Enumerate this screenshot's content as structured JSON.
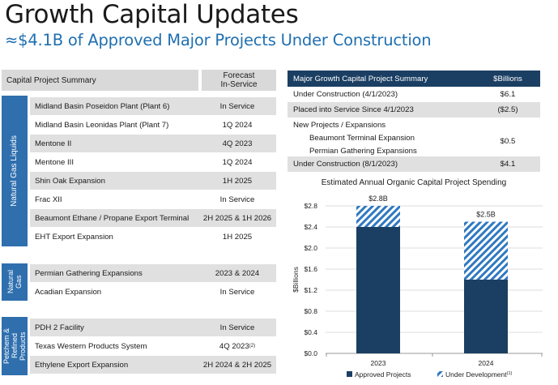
{
  "header": {
    "title": "Growth Capital Updates",
    "subtitle": "≈$4.1B of Approved Major Projects Under Construction"
  },
  "left_table": {
    "col1_header": "Capital Project Summary",
    "col2_header_line1": "Forecast",
    "col2_header_line2": "In-Service",
    "groups": [
      {
        "label": "Natural Gas Liquids",
        "rows": [
          {
            "name": "Midland Basin Poseidon Plant (Plant 6)",
            "date": "In Service"
          },
          {
            "name": "Midland Basin Leonidas Plant (Plant 7)",
            "date": "1Q 2024"
          },
          {
            "name": "Mentone II",
            "date": "4Q 2023"
          },
          {
            "name": "Mentone III",
            "date": "1Q 2024"
          },
          {
            "name": "Shin Oak Expansion",
            "date": "1H 2025"
          },
          {
            "name": "Frac XII",
            "date": "In Service"
          },
          {
            "name": "Beaumont Ethane / Propane Export Terminal",
            "date": "2H 2025 & 1H 2026"
          },
          {
            "name": "EHT Export Expansion",
            "date": "1H 2025"
          }
        ]
      },
      {
        "label_line1": "Natural",
        "label_line2": "Gas",
        "rows": [
          {
            "name": "Permian Gathering Expansions",
            "date": "2023 & 2024"
          },
          {
            "name": "Acadian Expansion",
            "date": "In Service"
          }
        ]
      },
      {
        "label_line1": "Petchem &",
        "label_line2": "Refined",
        "label_line3": "Products",
        "rows": [
          {
            "name": "PDH 2 Facility",
            "date": "In Service"
          },
          {
            "name": "Texas Western Products System",
            "date": "4Q 2023",
            "sup": "(2)"
          },
          {
            "name": "Ethylene Export Expansion",
            "date": "2H 2024 & 2H 2025"
          }
        ]
      }
    ]
  },
  "summary": {
    "header_left": "Major Growth Capital Project Summary",
    "header_right": "$Billions",
    "rows": [
      {
        "label": "Under Construction (4/1/2023)",
        "value": "$6.1"
      },
      {
        "label": "Placed into Service Since 4/1/2023",
        "value": "($2.5)"
      },
      {
        "label": "New Projects / Expansions",
        "value": ""
      },
      {
        "label": "Beaumont Terminal Expansion",
        "value": ""
      },
      {
        "label": "Permian Gathering Expansions",
        "value": "$0.5"
      },
      {
        "label": "Under Construction (8/1/2023)",
        "value": "$4.1"
      }
    ]
  },
  "chart_data": {
    "type": "bar",
    "title": "Estimated Annual Organic Capital Project Spending",
    "ylabel": "$Billions",
    "xlabel": "",
    "ylim": [
      0,
      2.8
    ],
    "yticks": [
      "$0.0",
      "$0.4",
      "$0.8",
      "$1.2",
      "$1.6",
      "$2.0",
      "$2.4",
      "$2.8"
    ],
    "categories": [
      "2023",
      "2024"
    ],
    "series": [
      {
        "name": "Approved Projects",
        "values": [
          2.4,
          1.4
        ],
        "color": "#1b3f63"
      },
      {
        "name": "Under Development",
        "name_sup": "(1)",
        "values": [
          0.4,
          1.1
        ],
        "color": "#2f78c0"
      }
    ],
    "totals": [
      "$2.8B",
      "$2.5B"
    ],
    "grid": true,
    "legend": "bottom"
  },
  "colors": {
    "accent_blue": "#1f6fb0",
    "tab_blue": "#2f6fae",
    "navy": "#1b3f63",
    "shade": "#e0e0e0"
  }
}
